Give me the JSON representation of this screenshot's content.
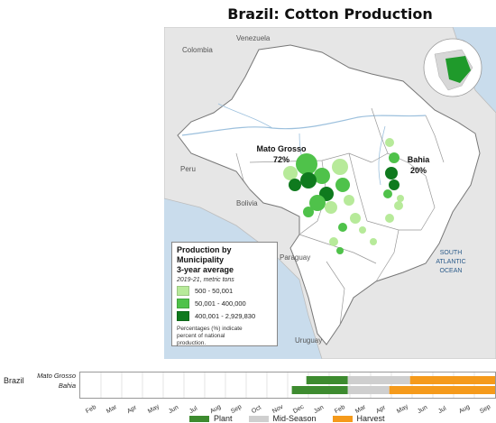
{
  "title": "Brazil: Cotton Production",
  "map": {
    "countries": {
      "colombia": "Colombia",
      "venezuela": "Venezuela",
      "peru": "Peru",
      "bolivia": "Bolivia",
      "paraguay": "Paraguay",
      "uruguay": "Uruguay"
    },
    "ocean": [
      "SOUTH",
      "ATLANTIC",
      "OCEAN"
    ],
    "states": [
      {
        "name": "Mato Grosso",
        "pct": "72%"
      },
      {
        "name": "Bahia",
        "pct": "20%"
      }
    ],
    "colors": {
      "low": "#b7ea9a",
      "mid": "#4fc24a",
      "high": "#0f7a1e",
      "land": "#ffffff",
      "neighbors": "#e6e6e6",
      "water": "#c9dcec"
    }
  },
  "legend": {
    "title": "Production by Municipality\n3-year average",
    "subtitle": "2019-21, metric tons",
    "items": [
      {
        "label": "500 - 50,001",
        "color": "#b7ea9a"
      },
      {
        "label": "50,001 - 400,000",
        "color": "#4fc24a"
      },
      {
        "label": "400,001 - 2,929,830",
        "color": "#0f7a1e"
      }
    ],
    "note": "Percentages (%) indicate\npercent of national\nproduction."
  },
  "calendar": {
    "country": "Brazil",
    "rows": [
      "Mato Grosso",
      "Bahia"
    ],
    "months": [
      "Feb",
      "Mar",
      "Apr",
      "May",
      "Jun",
      "Jul",
      "Aug",
      "Sep",
      "Oct",
      "Nov",
      "Dec",
      "Jan",
      "Feb",
      "Mar",
      "Apr",
      "May",
      "Jun",
      "Jul",
      "Aug",
      "Sep"
    ],
    "legend": [
      {
        "label": "Plant",
        "color": "#3d8b2f"
      },
      {
        "label": "Mid-Season",
        "color": "#cfcfcf"
      },
      {
        "label": "Harvest",
        "color": "#f59a1b"
      }
    ],
    "phases": [
      {
        "row": "Mato Grosso",
        "plant": [
          10.9,
          12.9
        ],
        "mid": [
          12.9,
          15.9
        ],
        "harvest": [
          15.9,
          20
        ]
      },
      {
        "row": "Bahia",
        "plant": [
          10.2,
          12.9
        ],
        "mid": [
          12.9,
          14.9
        ],
        "harvest": [
          14.9,
          20
        ]
      }
    ]
  }
}
